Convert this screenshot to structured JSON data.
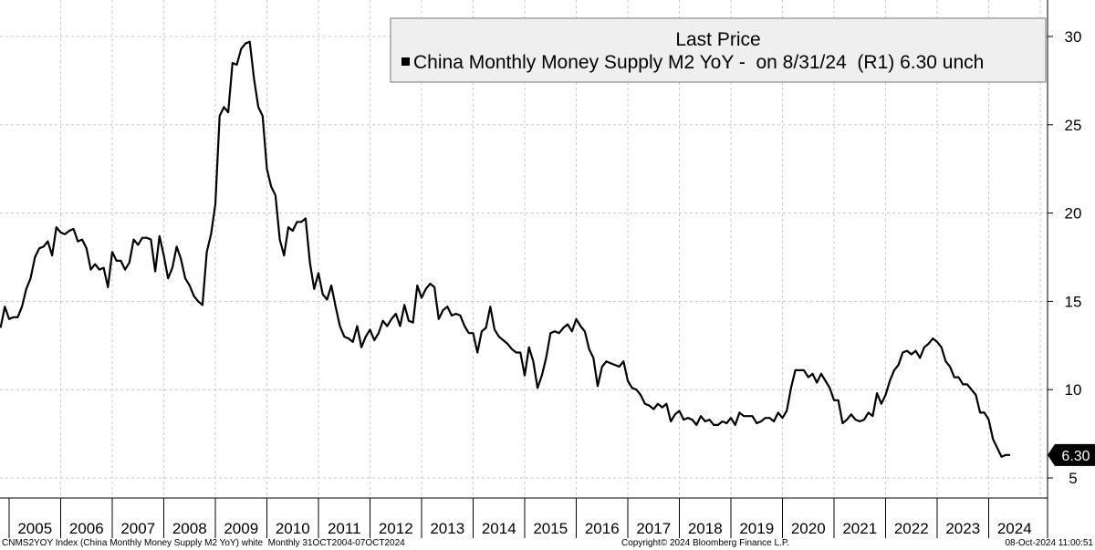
{
  "chart_data": {
    "type": "line",
    "legend": {
      "title": "Last Price",
      "entry": "China Monthly Money Supply M2 YoY -  on 8/31/24  (R1) 6.30 unch",
      "placement": "top-right"
    },
    "y_axis": {
      "side": "right",
      "ylim": [
        4.5,
        31
      ],
      "ticks": [
        5,
        10,
        15,
        20,
        25,
        30
      ]
    },
    "x_axis": {
      "start": "2004-10",
      "end": "2024-10",
      "tick_labels": [
        "2005",
        "2006",
        "2007",
        "2008",
        "2009",
        "2010",
        "2011",
        "2012",
        "2013",
        "2014",
        "2015",
        "2016",
        "2017",
        "2018",
        "2019",
        "2020",
        "2021",
        "2022",
        "2023",
        "2024"
      ]
    },
    "last_value_label": "6.30",
    "colors": {
      "line": "#000000",
      "grid": "#c8c8c8",
      "legend_bg": "#efefef",
      "last_bg": "#000000"
    },
    "series": [
      {
        "start": "2004-10",
        "values": [
          13.5,
          14.7,
          14.0,
          14.1,
          14.1,
          14.7,
          15.7,
          16.3,
          17.5,
          18.0,
          18.1,
          18.4,
          17.6,
          19.2,
          18.9,
          18.8,
          19.0,
          19.1,
          18.4,
          18.5,
          18.0,
          16.8,
          17.1,
          16.8,
          16.9,
          15.8,
          17.8,
          17.3,
          17.3,
          16.8,
          17.2,
          18.5,
          18.2,
          18.6,
          18.6,
          18.5,
          16.7,
          18.7,
          17.6,
          16.3,
          16.9,
          18.1,
          17.4,
          16.3,
          15.9,
          15.3,
          15.0,
          14.8,
          17.8,
          18.8,
          20.5,
          25.5,
          26.0,
          25.7,
          28.5,
          28.4,
          29.3,
          29.6,
          29.7,
          27.6,
          26.0,
          25.5,
          22.5,
          21.5,
          21.0,
          18.5,
          17.6,
          19.2,
          19.0,
          19.5,
          19.5,
          19.7,
          17.2,
          15.7,
          16.6,
          15.4,
          15.1,
          15.9,
          14.7,
          13.6,
          13.0,
          12.9,
          12.7,
          13.6,
          12.4,
          13.0,
          13.4,
          12.8,
          13.2,
          13.9,
          13.6,
          14.0,
          14.3,
          13.6,
          14.8,
          13.9,
          13.8,
          15.9,
          15.2,
          15.7,
          16.0,
          15.8,
          14.0,
          14.5,
          14.7,
          14.2,
          14.3,
          14.2,
          13.6,
          13.2,
          13.2,
          12.1,
          13.3,
          13.5,
          14.7,
          13.4,
          13.0,
          12.8,
          12.6,
          12.3,
          12.1,
          12.1,
          10.8,
          12.4,
          11.6,
          10.1,
          10.8,
          11.8,
          13.2,
          13.3,
          13.2,
          13.5,
          13.7,
          13.3,
          14.0,
          13.6,
          13.3,
          12.3,
          11.8,
          10.2,
          11.3,
          11.6,
          11.5,
          11.4,
          11.3,
          11.6,
          10.5,
          10.1,
          10.0,
          9.7,
          9.2,
          9.1,
          8.9,
          9.2,
          9.0,
          9.2,
          8.2,
          8.6,
          8.8,
          8.3,
          8.4,
          8.3,
          8.0,
          8.5,
          8.2,
          8.3,
          8.0,
          8.0,
          8.2,
          8.1,
          8.4,
          8.0,
          8.7,
          8.5,
          8.5,
          8.5,
          8.1,
          8.2,
          8.4,
          8.4,
          8.2,
          8.7,
          8.4,
          8.8,
          10.1,
          11.1,
          11.1,
          11.1,
          10.7,
          10.9,
          10.4,
          10.9,
          10.5,
          10.1,
          9.4,
          9.4,
          8.1,
          8.3,
          8.6,
          8.3,
          8.2,
          8.3,
          8.7,
          8.5,
          9.8,
          9.2,
          9.7,
          10.5,
          11.1,
          11.4,
          12.1,
          12.2,
          12.0,
          12.2,
          11.8,
          12.4,
          12.6,
          12.9,
          12.7,
          12.4,
          11.6,
          11.3,
          10.7,
          10.7,
          10.3,
          10.3,
          10.0,
          9.7,
          8.7,
          8.7,
          8.3,
          7.2,
          6.7,
          6.2,
          6.3,
          6.3
        ]
      }
    ]
  },
  "footer": {
    "left": "CNMS2YOY Index (China Monthly Money Supply M2 YoY) white  Monthly 31OCT2004-07OCT2024",
    "center": "Copyright© 2024 Bloomberg Finance L.P.",
    "right": "08-Oct-2024 11:00:51"
  }
}
